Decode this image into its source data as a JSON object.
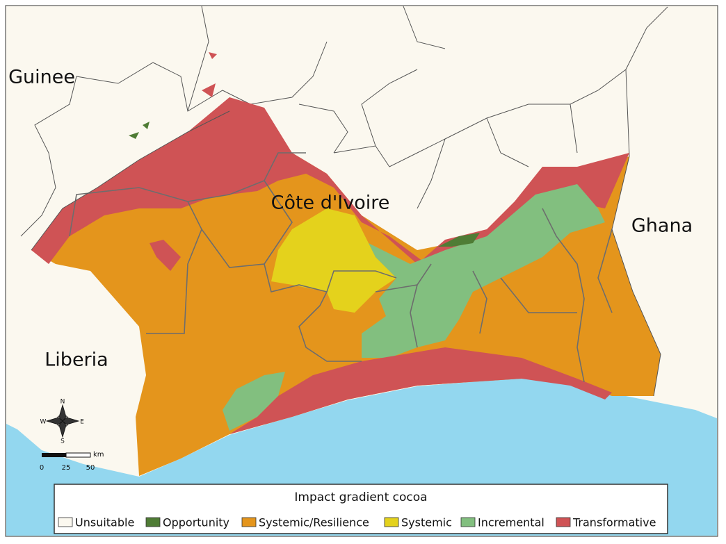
{
  "labels": {
    "guinee": "Guinee",
    "cote_divoire": "Côte d'Ivoire",
    "ghana": "Ghana",
    "liberia": "Liberia"
  },
  "compass": {
    "n": "N",
    "s": "S",
    "e": "E",
    "w": "W"
  },
  "scale_bar": {
    "unit": "km",
    "ticks": [
      "0",
      "25",
      "50"
    ]
  },
  "legend": {
    "title": "Impact gradient cocoa",
    "items": [
      {
        "label": "Unsuitable",
        "color": "#fbf8ef"
      },
      {
        "label": "Opportunity",
        "color": "#4f7c35"
      },
      {
        "label": "Systemic/Resilience",
        "color": "#e4951c"
      },
      {
        "label": "Systemic",
        "color": "#e4d21c"
      },
      {
        "label": "Incremental",
        "color": "#82bf7f"
      },
      {
        "label": "Transformative",
        "color": "#cf5355"
      }
    ]
  }
}
